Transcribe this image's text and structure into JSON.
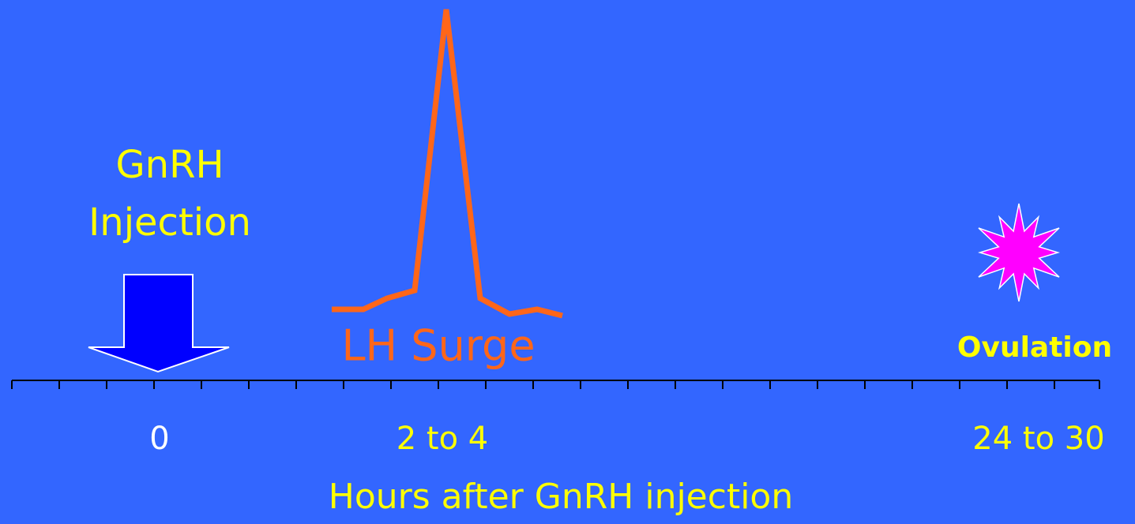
{
  "labels": {
    "gnrh": "GnRH",
    "injection": "Injection",
    "lh_surge": "LH Surge",
    "ovulation": "Ovulation"
  },
  "axis": {
    "ticks": [
      "0",
      "2 to 4",
      "24 to 30"
    ],
    "title": "Hours after GnRH injection"
  }
}
